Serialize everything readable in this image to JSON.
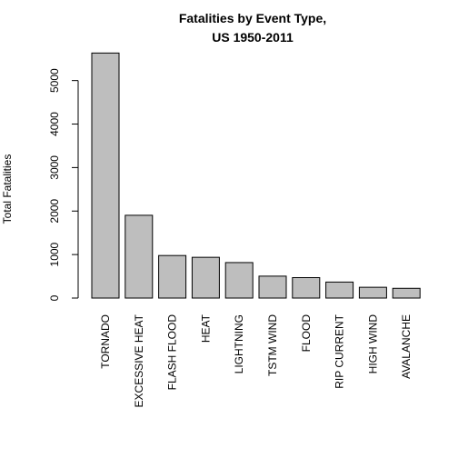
{
  "chart_data": {
    "type": "bar",
    "title_lines": [
      "Fatalities by Event Type,",
      "US 1950-2011"
    ],
    "xlabel": "",
    "ylabel": "Total Fatalities",
    "categories": [
      "TORNADO",
      "EXCESSIVE HEAT",
      "FLASH FLOOD",
      "HEAT",
      "LIGHTNING",
      "TSTM WIND",
      "FLOOD",
      "RIP CURRENT",
      "HIGH WIND",
      "AVALANCHE"
    ],
    "values": [
      5633,
      1903,
      978,
      937,
      816,
      504,
      470,
      368,
      248,
      224
    ],
    "yticks": [
      0,
      1000,
      2000,
      3000,
      4000,
      5000
    ],
    "ylim": [
      0,
      5800
    ],
    "grid": false,
    "legend": "none",
    "bar_color": "#bebebe",
    "bar_border_color": "#000000"
  }
}
